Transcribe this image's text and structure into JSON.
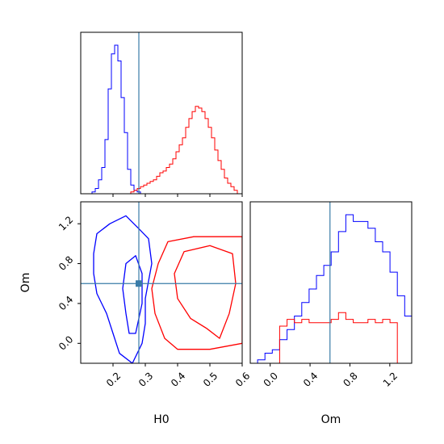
{
  "chart_data": {
    "type": "corner",
    "parameters": [
      "H0",
      "Om"
    ],
    "truth": {
      "H0": 0.28,
      "Om": 0.6
    },
    "colors": {
      "series_a": "#0000ff",
      "series_b": "#ff0000",
      "truth": "#3a7ca8"
    },
    "h0_axis": {
      "label": "H0",
      "range": [
        0.1,
        0.6
      ],
      "ticks": [
        "0.2",
        "0.3",
        "0.4",
        "0.5",
        "0.6"
      ]
    },
    "om_axis": {
      "label": "Om",
      "range": [
        -0.2,
        1.42
      ],
      "ticks": [
        "0.0",
        "0.4",
        "0.8",
        "1.2"
      ]
    },
    "om_vertical_ticks": [
      "0.0",
      "0.4",
      "0.8",
      "1.2"
    ],
    "h0_histograms": {
      "bin_edges_start": 0.105,
      "bin_width": 0.01,
      "series_a_counts": [
        0,
        0,
        0,
        1,
        3,
        8,
        15,
        31,
        60,
        80,
        85,
        76,
        55,
        35,
        14,
        5,
        2,
        1,
        0,
        0,
        0,
        0,
        0,
        0,
        0,
        0,
        0,
        0,
        0,
        0,
        0,
        0,
        0,
        0,
        0,
        0,
        0,
        0,
        0,
        0,
        0,
        0,
        0,
        0,
        0,
        0,
        0,
        0,
        0,
        0
      ],
      "series_b_counts": [
        0,
        0,
        0,
        0,
        0,
        0,
        0,
        0,
        0,
        0,
        0,
        0,
        0,
        0,
        0,
        1,
        2,
        3,
        4,
        5,
        6,
        7,
        8,
        10,
        12,
        13,
        15,
        17,
        20,
        24,
        28,
        32,
        38,
        43,
        47,
        50,
        49,
        47,
        43,
        38,
        32,
        25,
        19,
        14,
        9,
        6,
        4,
        2,
        0,
        0
      ]
    },
    "om_histograms": {
      "bin_edges_start": -0.2,
      "bin_width": 0.0738,
      "series_a_counts": [
        0,
        1,
        3,
        4,
        7,
        10,
        14,
        18,
        22,
        26,
        29,
        33,
        39,
        44,
        42,
        42,
        40,
        36,
        33,
        27,
        20,
        14,
        10,
        7,
        3,
        2
      ],
      "series_b_counts": [
        0,
        0,
        0,
        0,
        11,
        13,
        12,
        13,
        12,
        12,
        12,
        13,
        15,
        13,
        12,
        12,
        13,
        12,
        13,
        12,
        0,
        0,
        0,
        0,
        0,
        0
      ]
    },
    "contours": {
      "series_a": [
        {
          "level": "outer",
          "points": [
            [
              0.15,
              1.1
            ],
            [
              0.19,
              1.2
            ],
            [
              0.24,
              1.28
            ],
            [
              0.28,
              1.15
            ],
            [
              0.31,
              1.05
            ],
            [
              0.32,
              0.8
            ],
            [
              0.3,
              0.45
            ],
            [
              0.3,
              0.2
            ],
            [
              0.29,
              0.0
            ],
            [
              0.26,
              -0.2
            ],
            [
              0.22,
              -0.1
            ],
            [
              0.2,
              0.1
            ],
            [
              0.18,
              0.3
            ],
            [
              0.15,
              0.5
            ],
            [
              0.14,
              0.7
            ],
            [
              0.14,
              0.9
            ]
          ]
        },
        {
          "level": "inner",
          "points": [
            [
              0.24,
              0.8
            ],
            [
              0.27,
              0.88
            ],
            [
              0.29,
              0.7
            ],
            [
              0.29,
              0.4
            ],
            [
              0.27,
              0.1
            ],
            [
              0.25,
              0.1
            ],
            [
              0.24,
              0.3
            ],
            [
              0.23,
              0.55
            ]
          ]
        }
      ],
      "series_b": [
        {
          "level": "outer",
          "points": [
            [
              0.34,
              0.8
            ],
            [
              0.37,
              1.02
            ],
            [
              0.45,
              1.07
            ],
            [
              0.6,
              1.07
            ],
            [
              0.6,
              0.0
            ],
            [
              0.5,
              -0.06
            ],
            [
              0.4,
              -0.06
            ],
            [
              0.36,
              0.05
            ],
            [
              0.33,
              0.3
            ],
            [
              0.32,
              0.55
            ]
          ]
        },
        {
          "level": "inner",
          "points": [
            [
              0.39,
              0.7
            ],
            [
              0.42,
              0.92
            ],
            [
              0.5,
              0.98
            ],
            [
              0.57,
              0.9
            ],
            [
              0.58,
              0.6
            ],
            [
              0.56,
              0.3
            ],
            [
              0.53,
              0.05
            ],
            [
              0.49,
              0.15
            ],
            [
              0.44,
              0.25
            ],
            [
              0.4,
              0.45
            ]
          ]
        }
      ]
    }
  }
}
